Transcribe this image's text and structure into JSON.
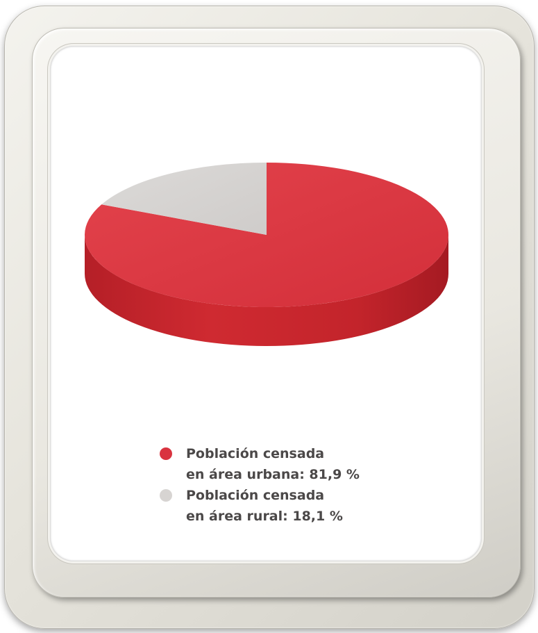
{
  "chart_data": {
    "type": "pie",
    "title": "",
    "slices": [
      {
        "name": "urbana",
        "value": 81.9,
        "color": "#d9333f",
        "label_line1": "Población censada",
        "label_line2": "en área urbana: 81,9 %"
      },
      {
        "name": "rural",
        "value": 18.1,
        "color": "#d7d4d2",
        "label_line1": "Población censada",
        "label_line2": "en área rural: 18,1 %"
      }
    ],
    "style": "3d",
    "legend_position": "bottom-center"
  }
}
